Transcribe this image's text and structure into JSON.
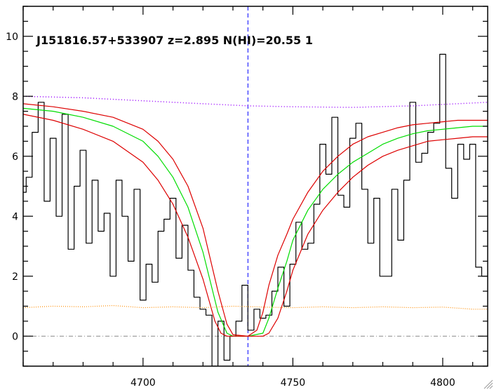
{
  "chart_data": {
    "type": "line",
    "title": "J151816.57+533907 z=2.895 N(HI)=20.55 1",
    "xlabel": "",
    "ylabel": "",
    "xlim": [
      4660,
      4815
    ],
    "ylim": [
      -1,
      11
    ],
    "x_ticks": [
      4700,
      4750,
      4800
    ],
    "y_ticks": [
      0,
      2,
      4,
      6,
      8,
      10
    ],
    "grid": false,
    "absorber_line_x": 4735,
    "zero_level": 0,
    "colors": {
      "flux": "#000000",
      "model": "#00dd00",
      "model_bounds": "#dd0000",
      "continuum": "#9900ff",
      "error": "#ff8c00",
      "marker": "#0000ff",
      "zero_line": "#888888"
    },
    "series": [
      {
        "key": "flux",
        "style": "step",
        "x": [
          4660,
          4662,
          4664,
          4666,
          4668,
          4670,
          4672,
          4674,
          4676,
          4678,
          4680,
          4682,
          4684,
          4686,
          4688,
          4690,
          4692,
          4694,
          4696,
          4698,
          4700,
          4702,
          4704,
          4706,
          4708,
          4710,
          4712,
          4714,
          4716,
          4718,
          4720,
          4722,
          4724,
          4726,
          4728,
          4730,
          4732,
          4734,
          4736,
          4738,
          4740,
          4742,
          4744,
          4746,
          4748,
          4750,
          4752,
          4754,
          4756,
          4758,
          4760,
          4762,
          4764,
          4766,
          4768,
          4770,
          4772,
          4774,
          4776,
          4778,
          4780,
          4782,
          4784,
          4786,
          4788,
          4790,
          4792,
          4794,
          4796,
          4798,
          4800,
          4802,
          4804,
          4806,
          4808,
          4810,
          4812,
          4814
        ],
        "y": [
          4.8,
          5.3,
          6.8,
          7.8,
          4.5,
          6.6,
          4.0,
          7.4,
          2.9,
          5.0,
          6.2,
          3.1,
          5.2,
          3.5,
          4.1,
          2.0,
          5.2,
          4.0,
          2.5,
          4.9,
          1.2,
          2.4,
          1.8,
          3.5,
          3.9,
          4.6,
          2.6,
          3.7,
          2.2,
          1.3,
          0.9,
          0.7,
          -1.0,
          0.5,
          -0.8,
          0.0,
          0.5,
          1.7,
          0.2,
          0.9,
          0.6,
          0.7,
          1.5,
          2.3,
          1.0,
          2.4,
          3.8,
          2.9,
          3.1,
          4.4,
          6.4,
          5.4,
          7.3,
          4.7,
          4.3,
          6.6,
          7.1,
          4.9,
          3.1,
          4.6,
          2.0,
          2.0,
          4.9,
          3.2,
          5.2,
          7.8,
          5.8,
          6.1,
          6.8,
          7.1,
          9.4,
          5.6,
          4.6,
          6.4,
          5.9,
          6.4,
          2.3,
          2.0
        ]
      },
      {
        "key": "model",
        "style": "smooth",
        "x": [
          4660,
          4670,
          4680,
          4690,
          4700,
          4705,
          4710,
          4715,
          4720,
          4725,
          4728,
          4730,
          4735,
          4740,
          4742,
          4745,
          4748,
          4750,
          4755,
          4760,
          4765,
          4770,
          4775,
          4780,
          4785,
          4790,
          4795,
          4800,
          4805,
          4810,
          4815
        ],
        "y": [
          7.6,
          7.5,
          7.3,
          7.0,
          6.5,
          6.0,
          5.3,
          4.3,
          2.8,
          0.8,
          0.1,
          0.0,
          0.0,
          0.1,
          0.6,
          1.6,
          2.5,
          3.2,
          4.2,
          4.9,
          5.4,
          5.8,
          6.1,
          6.4,
          6.6,
          6.75,
          6.85,
          6.9,
          6.95,
          7.0,
          7.0
        ]
      },
      {
        "key": "model_upper",
        "style": "smooth",
        "x": [
          4660,
          4670,
          4680,
          4690,
          4700,
          4705,
          4710,
          4715,
          4720,
          4725,
          4728,
          4730,
          4735,
          4738,
          4740,
          4742,
          4745,
          4748,
          4750,
          4755,
          4760,
          4765,
          4770,
          4775,
          4780,
          4785,
          4790,
          4795,
          4800,
          4805,
          4810,
          4815
        ],
        "y": [
          7.75,
          7.65,
          7.5,
          7.3,
          6.9,
          6.5,
          5.9,
          5.0,
          3.6,
          1.5,
          0.4,
          0.05,
          0.0,
          0.2,
          0.8,
          1.7,
          2.7,
          3.4,
          3.9,
          4.8,
          5.5,
          6.0,
          6.4,
          6.65,
          6.8,
          6.95,
          7.05,
          7.1,
          7.15,
          7.2,
          7.2,
          7.2
        ]
      },
      {
        "key": "model_lower",
        "style": "smooth",
        "x": [
          4660,
          4670,
          4680,
          4690,
          4700,
          4705,
          4710,
          4715,
          4720,
          4724,
          4726,
          4728,
          4735,
          4740,
          4742,
          4745,
          4748,
          4750,
          4755,
          4760,
          4765,
          4770,
          4775,
          4780,
          4785,
          4790,
          4795,
          4800,
          4805,
          4810,
          4815
        ],
        "y": [
          7.4,
          7.2,
          6.9,
          6.5,
          5.8,
          5.2,
          4.4,
          3.3,
          1.9,
          0.5,
          0.1,
          0.0,
          0.0,
          0.0,
          0.1,
          0.6,
          1.5,
          2.2,
          3.4,
          4.2,
          4.8,
          5.3,
          5.7,
          6.0,
          6.2,
          6.35,
          6.5,
          6.55,
          6.6,
          6.65,
          6.65
        ]
      },
      {
        "key": "continuum",
        "style": "dotted",
        "x": [
          4660,
          4680,
          4700,
          4720,
          4735,
          4750,
          4770,
          4790,
          4815
        ],
        "y": [
          8.0,
          7.95,
          7.85,
          7.75,
          7.68,
          7.65,
          7.63,
          7.68,
          7.8
        ]
      },
      {
        "key": "error",
        "style": "dotted",
        "x": [
          4660,
          4670,
          4680,
          4690,
          4700,
          4710,
          4720,
          4730,
          4740,
          4750,
          4760,
          4770,
          4780,
          4790,
          4800,
          4810,
          4815
        ],
        "y": [
          0.95,
          1.0,
          0.98,
          1.02,
          0.95,
          0.98,
          0.95,
          1.0,
          0.97,
          0.95,
          0.98,
          0.95,
          0.98,
          0.95,
          0.97,
          0.9,
          0.9
        ]
      }
    ]
  }
}
